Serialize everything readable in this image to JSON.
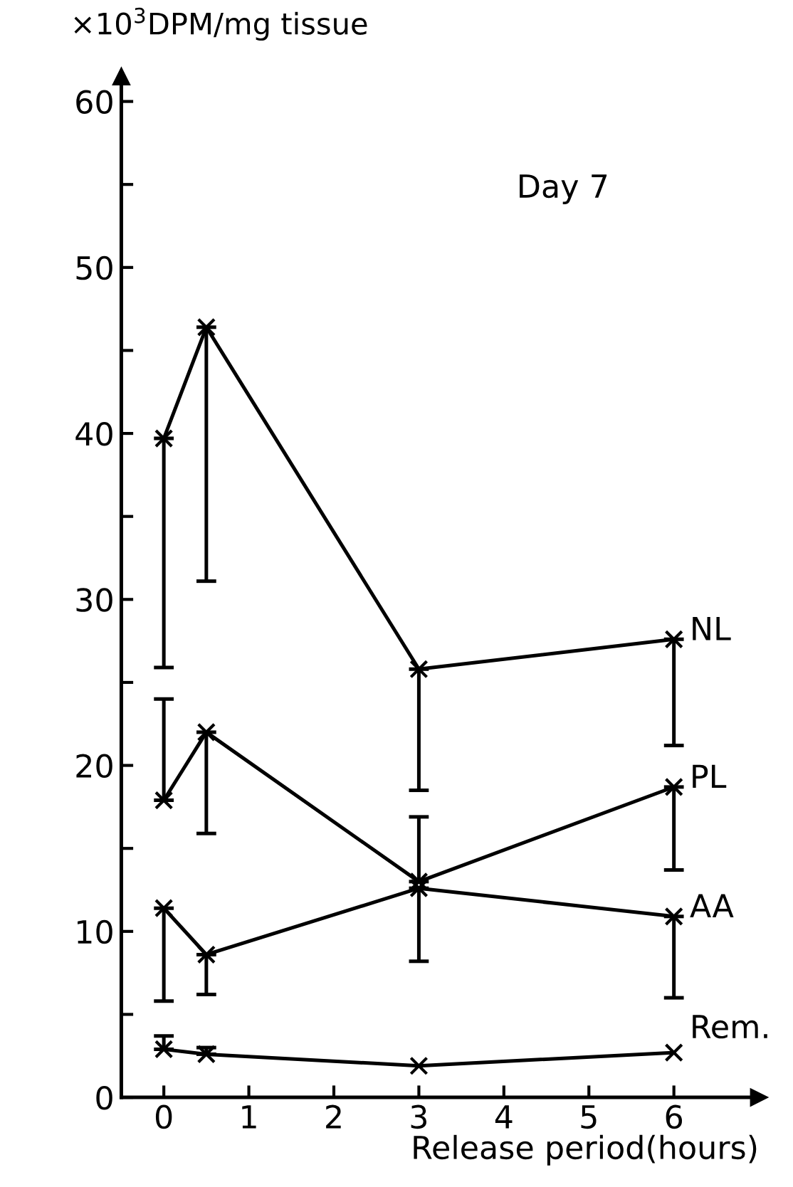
{
  "chart_data": {
    "type": "line",
    "title": "Day 7",
    "xlabel": "Release period(hours)",
    "ylabel": "×10$^{3}$DPM/mg tissue",
    "x": [
      0,
      0.5,
      3,
      6
    ],
    "series": [
      {
        "name": "NL",
        "color": "#000000",
        "values": [
          39.7,
          46.4,
          25.8,
          27.6
        ],
        "errors": [
          [
            25.9,
            39.7
          ],
          [
            31.1,
            46.4
          ],
          [
            18.5,
            25.8
          ],
          [
            21.2,
            27.6
          ]
        ]
      },
      {
        "name": "PL",
        "color": "#000000",
        "values": [
          17.9,
          22.0,
          13.0,
          18.7
        ],
        "errors": [
          [
            17.9,
            24.0
          ],
          [
            15.9,
            22.0
          ],
          [
            13.0,
            16.9
          ],
          [
            13.7,
            18.7
          ]
        ]
      },
      {
        "name": "AA",
        "color": "#000000",
        "values": [
          11.4,
          8.6,
          12.6,
          10.9
        ],
        "errors": [
          [
            5.8,
            11.4
          ],
          [
            6.2,
            8.6
          ],
          [
            8.2,
            12.6
          ],
          [
            6.0,
            10.9
          ]
        ]
      },
      {
        "name": "Rem.",
        "color": "#000000",
        "values": [
          2.9,
          2.6,
          1.9,
          2.7
        ],
        "errors": [
          [
            2.9,
            3.7
          ],
          [
            2.6,
            3.0
          ],
          null,
          null
        ]
      }
    ],
    "xlim": [
      -0.5,
      7
    ],
    "ylim": [
      0,
      61.5
    ],
    "xticks": [
      0,
      1,
      2,
      3,
      4,
      5,
      6
    ],
    "yticks": [
      0,
      {
        "value": 5,
        "label": null
      },
      10,
      {
        "value": 15,
        "label": null
      },
      20,
      {
        "value": 25,
        "label": null
      },
      30,
      {
        "value": 35,
        "label": null
      },
      40,
      {
        "value": 45,
        "label": null
      },
      50,
      {
        "value": 55,
        "label": null
      },
      60
    ],
    "grid": false,
    "legend": false,
    "marker": "cross",
    "line_style": "solid"
  }
}
